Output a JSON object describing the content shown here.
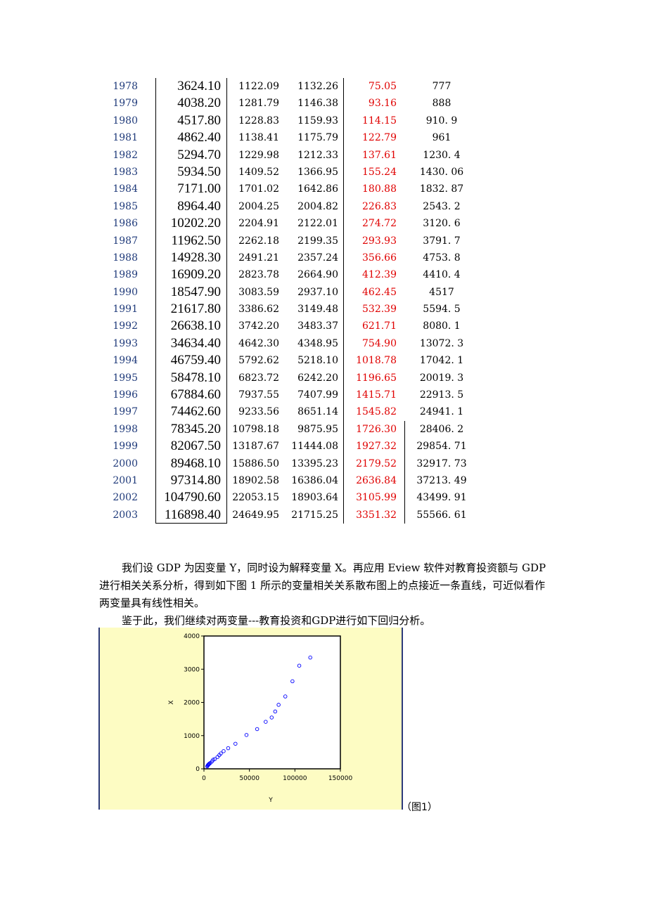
{
  "table": {
    "rows": [
      {
        "year": "1978",
        "gdp": "3624.10",
        "a": "1122.09",
        "b": "1132.26",
        "c": "75.05",
        "d": "777"
      },
      {
        "year": "1979",
        "gdp": "4038.20",
        "a": "1281.79",
        "b": "1146.38",
        "c": "93.16",
        "d": "888"
      },
      {
        "year": "1980",
        "gdp": "4517.80",
        "a": "1228.83",
        "b": "1159.93",
        "c": "114.15",
        "d": "910. 9"
      },
      {
        "year": "1981",
        "gdp": "4862.40",
        "a": "1138.41",
        "b": "1175.79",
        "c": "122.79",
        "d": "961"
      },
      {
        "year": "1982",
        "gdp": "5294.70",
        "a": "1229.98",
        "b": "1212.33",
        "c": "137.61",
        "d": "1230. 4"
      },
      {
        "year": "1983",
        "gdp": "5934.50",
        "a": "1409.52",
        "b": "1366.95",
        "c": "155.24",
        "d": "1430. 06"
      },
      {
        "year": "1984",
        "gdp": "7171.00",
        "a": "1701.02",
        "b": "1642.86",
        "c": "180.88",
        "d": "1832. 87"
      },
      {
        "year": "1985",
        "gdp": "8964.40",
        "a": "2004.25",
        "b": "2004.82",
        "c": "226.83",
        "d": "2543. 2"
      },
      {
        "year": "1986",
        "gdp": "10202.20",
        "a": "2204.91",
        "b": "2122.01",
        "c": "274.72",
        "d": "3120. 6"
      },
      {
        "year": "1987",
        "gdp": "11962.50",
        "a": "2262.18",
        "b": "2199.35",
        "c": "293.93",
        "d": "3791. 7"
      },
      {
        "year": "1988",
        "gdp": "14928.30",
        "a": "2491.21",
        "b": "2357.24",
        "c": "356.66",
        "d": "4753. 8"
      },
      {
        "year": "1989",
        "gdp": "16909.20",
        "a": "2823.78",
        "b": "2664.90",
        "c": "412.39",
        "d": "4410. 4"
      },
      {
        "year": "1990",
        "gdp": "18547.90",
        "a": "3083.59",
        "b": "2937.10",
        "c": "462.45",
        "d": "4517"
      },
      {
        "year": "1991",
        "gdp": "21617.80",
        "a": "3386.62",
        "b": "3149.48",
        "c": "532.39",
        "d": "5594. 5"
      },
      {
        "year": "1992",
        "gdp": "26638.10",
        "a": "3742.20",
        "b": "3483.37",
        "c": "621.71",
        "d": "8080. 1"
      },
      {
        "year": "1993",
        "gdp": "34634.40",
        "a": "4642.30",
        "b": "4348.95",
        "c": "754.90",
        "d": "13072. 3"
      },
      {
        "year": "1994",
        "gdp": "46759.40",
        "a": "5792.62",
        "b": "5218.10",
        "c": "1018.78",
        "d": "17042. 1"
      },
      {
        "year": "1995",
        "gdp": "58478.10",
        "a": "6823.72",
        "b": "6242.20",
        "c": "1196.65",
        "d": "20019. 3"
      },
      {
        "year": "1996",
        "gdp": "67884.60",
        "a": "7937.55",
        "b": "7407.99",
        "c": "1415.71",
        "d": "22913. 5"
      },
      {
        "year": "1997",
        "gdp": "74462.60",
        "a": "9233.56",
        "b": "8651.14",
        "c": "1545.82",
        "d": "24941. 1"
      },
      {
        "year": "1998",
        "gdp": "78345.20",
        "a": "10798.18",
        "b": "9875.95",
        "c": "1726.30",
        "d": "28406. 2"
      },
      {
        "year": "1999",
        "gdp": "82067.50",
        "a": "13187.67",
        "b": "11444.08",
        "c": "1927.32",
        "d": "29854. 71"
      },
      {
        "year": "2000",
        "gdp": "89468.10",
        "a": "15886.50",
        "b": "13395.23",
        "c": "2179.52",
        "d": "32917. 73"
      },
      {
        "year": "2001",
        "gdp": "97314.80",
        "a": "18902.58",
        "b": "16386.04",
        "c": "2636.84",
        "d": "37213. 49"
      },
      {
        "year": "2002",
        "gdp": "104790.60",
        "a": "22053.15",
        "b": "18903.64",
        "c": "3105.99",
        "d": "43499. 91"
      },
      {
        "year": "2003",
        "gdp": "116898.40",
        "a": "24649.95",
        "b": "21715.25",
        "c": "3351.32",
        "d": "55566. 61"
      }
    ]
  },
  "paragraphs": {
    "p1": "我们设 GDP 为因变量 Y，同时设为解释变量 X。再应用 Eview 软件对教育投资额与 GDP 进行相关关系分析，得到如下图 1 所示的变量相关关系散布图上的点接近一条直线，可近似看作两变量具有线性相关。",
    "p2": "鉴于此，我们继续对两变量---教育投资和GDP进行如下回归分析。"
  },
  "figure": {
    "caption": "（图1）"
  },
  "chart_data": {
    "type": "scatter",
    "xlabel": "Y",
    "ylabel": "X",
    "xlim": [
      0,
      150000
    ],
    "ylim": [
      0,
      4000
    ],
    "xticks": [
      "0",
      "50000",
      "100000",
      "150000"
    ],
    "yticks": [
      "0",
      "1000",
      "2000",
      "3000",
      "4000"
    ],
    "point_color": "#0000ff",
    "grid": false,
    "x": [
      3624.1,
      4038.2,
      4517.8,
      4862.4,
      5294.7,
      5934.5,
      7171.0,
      8964.4,
      10202.2,
      11962.5,
      14928.3,
      16909.2,
      18547.9,
      21617.8,
      26638.1,
      34634.4,
      46759.4,
      58478.1,
      67884.6,
      74462.6,
      78345.2,
      82067.5,
      89468.1,
      97314.8,
      104790.6,
      116898.4
    ],
    "y": [
      75.05,
      93.16,
      114.15,
      122.79,
      137.61,
      155.24,
      180.88,
      226.83,
      274.72,
      293.93,
      356.66,
      412.39,
      462.45,
      532.39,
      621.71,
      754.9,
      1018.78,
      1196.65,
      1415.71,
      1545.82,
      1726.3,
      1927.32,
      2179.52,
      2636.84,
      3105.99,
      3351.32
    ]
  }
}
